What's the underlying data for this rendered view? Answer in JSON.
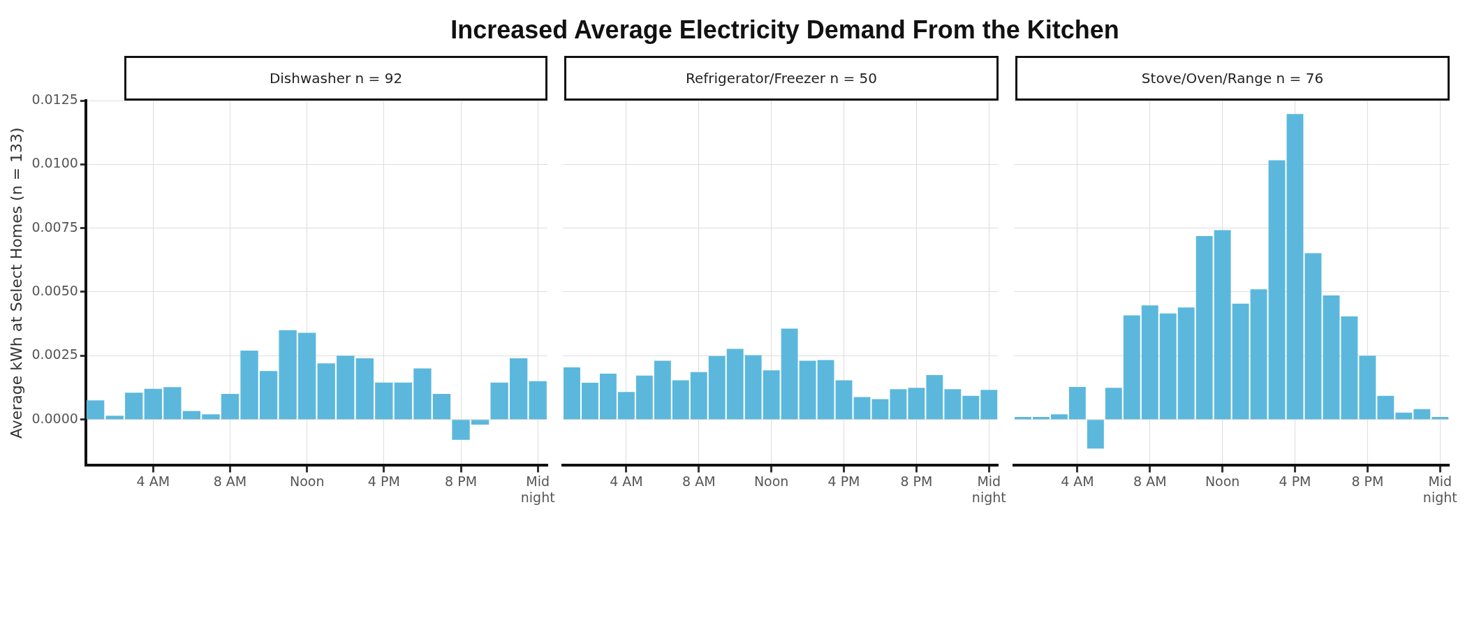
{
  "chart_data": [
    {
      "type": "bar",
      "subtitle": "Dishwasher n = 92",
      "ylabel": "Average kWh at Select Homes (n = 133)",
      "color": "#5bb8dc",
      "categories": [
        null,
        null,
        null,
        "4 AM",
        null,
        null,
        null,
        "8 AM",
        null,
        null,
        null,
        "Noon",
        null,
        null,
        null,
        "4 PM",
        null,
        null,
        null,
        "8 PM",
        null,
        null,
        null,
        "Mid\nnight"
      ],
      "values": [
        0.00075,
        0.00015,
        0.00105,
        0.0012,
        0.00127,
        0.00033,
        0.0002,
        0.001,
        0.0027,
        0.0019,
        0.0035,
        0.0034,
        0.0022,
        0.0025,
        0.0024,
        0.00145,
        0.00145,
        0.002,
        0.001,
        -0.0008,
        -0.0002,
        0.00145,
        0.0024,
        0.0015
      ],
      "ylim": [
        -0.0018,
        0.0125
      ],
      "yticks": [
        {
          "value": 0,
          "label": "0.0000"
        },
        {
          "value": 0.0025,
          "label": "0.0025"
        },
        {
          "value": 0.005,
          "label": "0.0050"
        },
        {
          "value": 0.0075,
          "label": "0.0075"
        },
        {
          "value": 0.01,
          "label": "0.0100"
        },
        {
          "value": 0.0125,
          "label": "0.0125"
        }
      ],
      "grid": true
    },
    {
      "type": "bar",
      "title": "Increased Average Electricity Demand From the Kitchen",
      "subtitle": "Refrigerator/Freezer n = 50",
      "color": "#5bb8dc",
      "categories": [
        null,
        null,
        null,
        "4 AM",
        null,
        null,
        null,
        "8 AM",
        null,
        null,
        null,
        "Noon",
        null,
        null,
        null,
        "4 PM",
        null,
        null,
        null,
        "8 PM",
        null,
        null,
        null,
        "Mid\nnight"
      ],
      "values": [
        0.00204,
        0.00144,
        0.0018,
        0.00108,
        0.00172,
        0.0023,
        0.00154,
        0.00186,
        0.00249,
        0.00277,
        0.00252,
        0.00193,
        0.00356,
        0.0023,
        0.00233,
        0.00154,
        0.00088,
        0.0008,
        0.00119,
        0.00124,
        0.00174,
        0.00119,
        0.00093,
        0.00116
      ],
      "ylim": [
        -0.0018,
        0.0125
      ],
      "yticks": [
        0,
        0.0025,
        0.005,
        0.0075,
        0.01,
        0.0125
      ],
      "grid": true,
      "tick_labels": "x"
    },
    {
      "type": "bar",
      "subtitle": "Stove/Oven/Range n = 76",
      "color": "#5bb8dc",
      "categories": [
        null,
        null,
        null,
        "4 AM",
        null,
        null,
        null,
        "8 AM",
        null,
        null,
        null,
        "Noon",
        null,
        null,
        null,
        "4 PM",
        null,
        null,
        null,
        "8 PM",
        null,
        null,
        null,
        "Mid\nnight"
      ],
      "values": [
        0.0001,
        0.0001,
        0.0002,
        0.00128,
        -0.00114,
        0.00124,
        0.00408,
        0.00447,
        0.00416,
        0.00439,
        0.00719,
        0.00742,
        0.00454,
        0.0051,
        0.01016,
        0.01197,
        0.00652,
        0.00486,
        0.00404,
        0.0025,
        0.00093,
        0.00027,
        0.00041,
        0.0001
      ],
      "ylim": [
        -0.0018,
        0.0125
      ],
      "yticks": [
        0,
        0.0025,
        0.005,
        0.0075,
        0.01,
        0.0125
      ],
      "grid": true,
      "tick_labels": "x"
    }
  ]
}
